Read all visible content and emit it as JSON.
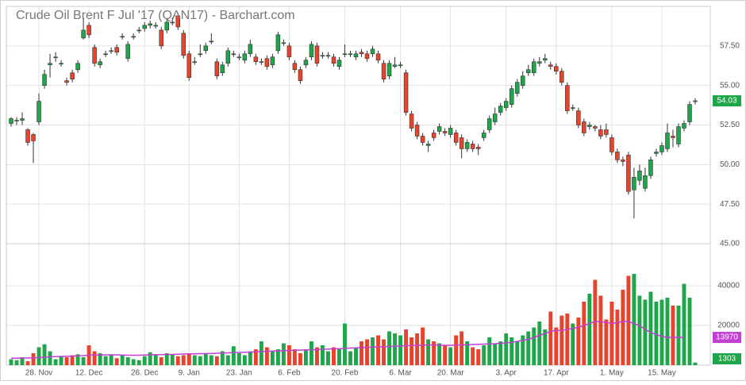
{
  "chart_data": {
    "type": "candlestick",
    "title": "Crude Oil Brent F Jul '17 (QAN17) - Barchart.com",
    "categories": [
      null,
      null,
      null,
      null,
      null,
      "28. Nov",
      null,
      null,
      null,
      null,
      null,
      null,
      null,
      null,
      "12. Dec",
      null,
      null,
      null,
      null,
      null,
      null,
      null,
      null,
      null,
      "26. Dec",
      null,
      null,
      null,
      null,
      null,
      null,
      null,
      "9. Jan",
      null,
      null,
      null,
      null,
      null,
      null,
      null,
      null,
      "23. Jan",
      null,
      null,
      null,
      null,
      null,
      null,
      null,
      null,
      "6. Feb",
      null,
      null,
      null,
      null,
      null,
      null,
      null,
      null,
      null,
      "20. Feb",
      null,
      null,
      null,
      null,
      null,
      null,
      null,
      null,
      null,
      "6. Mar",
      null,
      null,
      null,
      null,
      null,
      null,
      null,
      null,
      "20. Mar",
      null,
      null,
      null,
      null,
      null,
      null,
      null,
      null,
      null,
      "3. Apr",
      null,
      null,
      null,
      null,
      null,
      null,
      null,
      null,
      "17. Apr",
      null,
      null,
      null,
      null,
      null,
      null,
      null,
      null,
      null,
      "1. May",
      null,
      null,
      null,
      null,
      null,
      null,
      null,
      null,
      "15. May",
      null,
      null,
      null,
      null,
      null,
      null
    ],
    "open": [
      52.6,
      52.8,
      52.8,
      52.2,
      51.9,
      52.7,
      55.0,
      56.3,
      56.8,
      56.4,
      55.3,
      55.8,
      56.0,
      58.0,
      58.8,
      57.4,
      56.3,
      57.0,
      57.2,
      57.4,
      58.1,
      56.7,
      58.1,
      58.5,
      58.6,
      58.8,
      58.8,
      58.5,
      58.5,
      59.0,
      59.4,
      58.3,
      57.0,
      56.5,
      57.0,
      57.2,
      57.8,
      56.5,
      55.8,
      56.4,
      57.0,
      56.8,
      56.6,
      57.0,
      56.8,
      56.5,
      56.7,
      56.3,
      57.2,
      57.7,
      57.5,
      56.4,
      56.0,
      56.3,
      56.8,
      57.5,
      56.9,
      56.9,
      56.8,
      56.2,
      57.0,
      57.0,
      56.8,
      57.1,
      57.0,
      57.0,
      57.0,
      56.4,
      55.6,
      56.2,
      56.3,
      55.8,
      53.2,
      52.5,
      51.8,
      51.2,
      52.0,
      52.1,
      52.1,
      51.9,
      52.0,
      51.7,
      51.0,
      51.3,
      51.1,
      51.7,
      52.2,
      52.7,
      53.3,
      53.6,
      53.8,
      54.5,
      55.0,
      55.8,
      55.8,
      56.4,
      56.6,
      56.3,
      56.2,
      55.9,
      55.0,
      53.6,
      53.4,
      52.7,
      52.4,
      52.4,
      52.2,
      52.2,
      51.7,
      50.8,
      50.3,
      50.6,
      48.4,
      49.0,
      48.5,
      49.3,
      50.7,
      50.8,
      51.0,
      51.8,
      51.3,
      52.3,
      52.7,
      54.0
    ],
    "high": [
      53.0,
      53.0,
      53.3,
      52.3,
      52.0,
      54.5,
      56.0,
      57.0,
      57.1,
      56.6,
      55.5,
      56.0,
      56.6,
      59.3,
      59.0,
      57.6,
      56.7,
      57.2,
      57.4,
      57.6,
      58.3,
      57.8,
      58.3,
      58.7,
      59.0,
      59.1,
      59.0,
      58.7,
      59.2,
      59.3,
      59.6,
      58.5,
      57.2,
      56.8,
      57.6,
      57.7,
      58.3,
      56.7,
      56.5,
      57.4,
      57.2,
      57.0,
      57.2,
      57.9,
      57.0,
      56.7,
      56.9,
      57.0,
      58.4,
      57.9,
      57.7,
      56.6,
      56.2,
      56.8,
      57.8,
      57.7,
      57.1,
      57.1,
      57.0,
      56.8,
      57.6,
      57.2,
      57.2,
      57.3,
      57.2,
      57.5,
      57.2,
      56.6,
      56.6,
      56.8,
      56.5,
      56.0,
      53.4,
      52.7,
      52.0,
      51.5,
      52.2,
      52.6,
      52.3,
      52.5,
      52.2,
      51.9,
      51.6,
      51.5,
      51.3,
      52.2,
      53.1,
      53.6,
      53.9,
      54.2,
      55.0,
      55.4,
      55.9,
      56.3,
      56.7,
      56.8,
      57.0,
      56.5,
      56.4,
      56.1,
      55.2,
      53.8,
      53.6,
      52.9,
      52.7,
      52.5,
      52.5,
      52.6,
      51.9,
      51.0,
      50.5,
      50.8,
      49.8,
      50.0,
      49.8,
      50.5,
      51.0,
      51.4,
      52.6,
      52.2,
      52.6,
      52.8,
      54.0,
      54.2
    ],
    "low": [
      52.4,
      52.5,
      52.5,
      51.2,
      50.1,
      52.5,
      54.8,
      55.5,
      56.5,
      56.2,
      55.0,
      55.2,
      55.8,
      57.9,
      58.0,
      56.2,
      56.1,
      56.8,
      57.0,
      56.9,
      57.9,
      56.5,
      57.9,
      58.3,
      58.4,
      58.6,
      58.6,
      57.3,
      58.3,
      58.8,
      58.5,
      56.7,
      55.3,
      56.3,
      56.8,
      57.0,
      57.6,
      55.4,
      55.6,
      56.2,
      56.8,
      56.6,
      56.4,
      56.8,
      56.3,
      56.3,
      56.0,
      56.1,
      57.0,
      57.5,
      56.6,
      55.8,
      55.1,
      56.1,
      56.6,
      56.2,
      56.7,
      56.7,
      56.2,
      56.0,
      56.8,
      56.8,
      56.6,
      56.8,
      56.5,
      56.8,
      56.4,
      55.2,
      55.4,
      56.1,
      56.1,
      53.1,
      52.1,
      51.6,
      51.2,
      50.8,
      51.5,
      51.9,
      51.8,
      51.7,
      51.2,
      50.4,
      50.8,
      50.8,
      50.6,
      51.5,
      52.0,
      52.5,
      53.1,
      53.4,
      53.6,
      54.3,
      54.8,
      55.6,
      55.6,
      56.2,
      56.4,
      56.0,
      55.7,
      55.0,
      53.2,
      53.4,
      52.3,
      51.8,
      52.2,
      52.1,
      51.6,
      51.7,
      50.6,
      50.1,
      49.9,
      48.1,
      46.6,
      48.7,
      48.3,
      49.1,
      50.5,
      50.6,
      50.8,
      51.1,
      51.1,
      52.1,
      52.5,
      53.8
    ],
    "close": [
      52.9,
      52.8,
      52.9,
      51.4,
      51.5,
      54.0,
      55.7,
      56.4,
      56.8,
      56.4,
      55.2,
      55.4,
      56.4,
      58.5,
      58.2,
      56.4,
      56.5,
      57.0,
      57.2,
      57.1,
      58.1,
      57.6,
      58.1,
      58.5,
      58.8,
      58.9,
      58.8,
      57.5,
      59.0,
      59.0,
      58.7,
      56.9,
      55.5,
      56.5,
      57.0,
      57.5,
      57.8,
      55.6,
      56.3,
      57.2,
      57.0,
      56.8,
      57.0,
      57.6,
      56.5,
      56.5,
      56.2,
      56.8,
      58.2,
      57.7,
      56.8,
      56.0,
      55.3,
      56.6,
      57.6,
      56.4,
      56.9,
      56.9,
      56.4,
      56.6,
      57.0,
      57.0,
      57.0,
      57.0,
      56.7,
      57.3,
      56.6,
      55.4,
      56.4,
      56.3,
      56.3,
      53.3,
      52.3,
      51.8,
      51.4,
      51.3,
      51.7,
      52.4,
      52.0,
      52.3,
      51.4,
      51.0,
      51.4,
      51.0,
      51.0,
      52.0,
      52.9,
      53.2,
      53.7,
      54.0,
      54.8,
      55.2,
      55.6,
      56.0,
      56.5,
      56.5,
      56.7,
      56.2,
      55.9,
      55.2,
      53.4,
      53.6,
      52.5,
      52.0,
      52.5,
      52.3,
      51.8,
      51.9,
      50.8,
      50.3,
      50.2,
      48.3,
      49.2,
      49.6,
      49.3,
      50.3,
      50.8,
      51.2,
      52.0,
      51.7,
      52.4,
      52.6,
      53.8,
      54.03
    ],
    "volume": [
      3000,
      2500,
      4000,
      2000,
      6000,
      9000,
      10500,
      7000,
      3000,
      4500,
      4000,
      5000,
      5500,
      4000,
      10000,
      7000,
      6000,
      4500,
      5000,
      3500,
      5000,
      4000,
      3000,
      2500,
      4500,
      6500,
      5000,
      4000,
      6000,
      5500,
      4500,
      5000,
      6000,
      5000,
      4500,
      6000,
      5000,
      4500,
      7000,
      5000,
      9500,
      6000,
      5000,
      7000,
      8000,
      12000,
      9000,
      7000,
      8000,
      11000,
      10000,
      8000,
      6000,
      8000,
      12000,
      9000,
      10000,
      7000,
      9000,
      8000,
      21000,
      7000,
      9000,
      12000,
      13000,
      14000,
      15000,
      13000,
      17000,
      16000,
      15000,
      18000,
      14000,
      16000,
      19000,
      13000,
      12000,
      11000,
      10000,
      9000,
      15000,
      17000,
      12000,
      9000,
      8000,
      10000,
      14000,
      11000,
      12000,
      16000,
      14000,
      12000,
      15000,
      17000,
      19000,
      22000,
      18000,
      27000,
      19000,
      25000,
      26000,
      21000,
      24000,
      32000,
      36000,
      43000,
      35000,
      23000,
      32000,
      28000,
      38000,
      45000,
      46000,
      35000,
      33000,
      37000,
      32000,
      33000,
      34000,
      30000,
      30000,
      41000,
      34000,
      1303
    ],
    "ma": [
      3500,
      3500,
      3600,
      3600,
      3700,
      3800,
      4000,
      4200,
      4300,
      4400,
      4500,
      4600,
      4700,
      4800,
      5000,
      5100,
      5100,
      5200,
      5200,
      5200,
      5100,
      5000,
      5000,
      5000,
      5100,
      5200,
      5300,
      5300,
      5400,
      5400,
      5500,
      5600,
      5700,
      5700,
      5800,
      5800,
      5900,
      6000,
      6100,
      6200,
      6300,
      6400,
      6500,
      6600,
      6700,
      6800,
      7000,
      7100,
      7200,
      7300,
      7400,
      7500,
      7600,
      7700,
      7800,
      7900,
      8000,
      8100,
      8200,
      8300,
      8500,
      8600,
      8700,
      8800,
      9000,
      9100,
      9200,
      9300,
      9400,
      9500,
      9700,
      9800,
      9900,
      10000,
      10100,
      10200,
      10200,
      10100,
      10000,
      10000,
      10100,
      10200,
      10300,
      10400,
      10500,
      10600,
      10700,
      10800,
      11000,
      11200,
      11500,
      12000,
      12500,
      13000,
      14000,
      15000,
      16000,
      17000,
      17500,
      17500,
      18000,
      18500,
      19000,
      20000,
      21000,
      22000,
      22000,
      21500,
      21000,
      21500,
      22000,
      22000,
      21000,
      20000,
      18000,
      16500,
      15500,
      14500,
      14000,
      14000,
      14000,
      13970,
      null,
      null
    ],
    "up_color": "#1fa54a",
    "down_color": "#e8432d",
    "ma_color": "#c13fd2",
    "ylim": [
      45,
      60
    ],
    "yticks": [
      {
        "value": 45,
        "label": "45.00"
      },
      {
        "value": 47.5,
        "label": "47.50"
      },
      {
        "value": 50,
        "label": "50.00"
      },
      {
        "value": 52.5,
        "label": "52.50"
      },
      {
        "value": 55,
        "label": "55.00"
      },
      {
        "value": 57.5,
        "label": "57.50"
      }
    ],
    "y2lim": [
      0,
      60000
    ],
    "y2ticks": [
      20000,
      40000
    ],
    "grid": true
  }
}
